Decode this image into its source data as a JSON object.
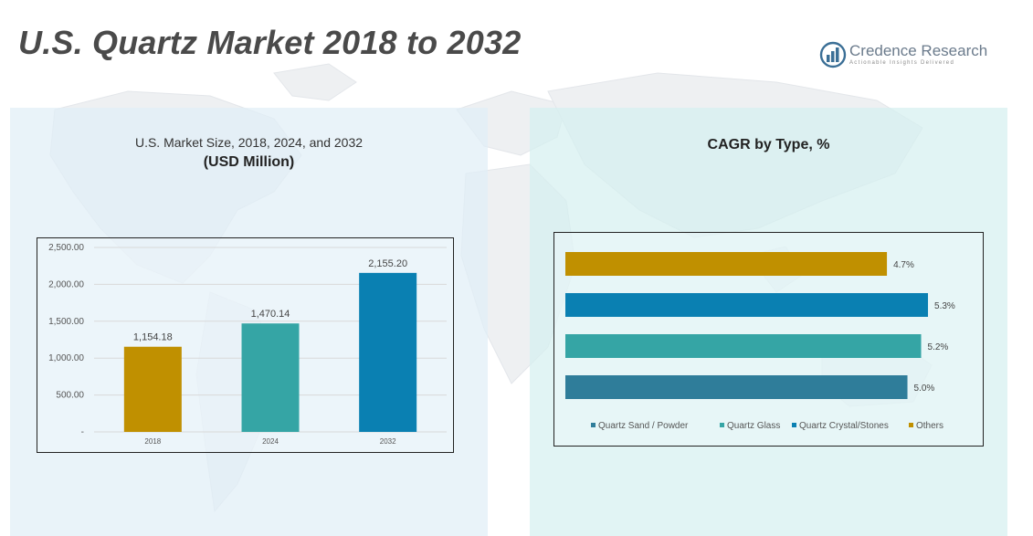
{
  "title": "U.S. Quartz Market 2018 to 2032",
  "logo": {
    "name": "Credence Research",
    "tagline": "Actionable Insights Delivered"
  },
  "left_panel": {
    "subtitle": "U.S. Market Size, 2018, 2024, and 2032",
    "unit": "(USD Million)"
  },
  "right_panel": {
    "title": "CAGR by Type, %"
  },
  "chart_data": [
    {
      "type": "bar",
      "categories": [
        "2018",
        "2024",
        "2032"
      ],
      "values": [
        1154.18,
        1470.14,
        2155.2
      ],
      "value_labels": [
        "1,154.18",
        "1,470.14",
        "2,155.20"
      ],
      "colors": [
        "#c09000",
        "#35a5a5",
        "#0a80b2"
      ],
      "title": "U.S. Market Size, 2018, 2024, and 2032",
      "subtitle": "(USD Million)",
      "ylim": [
        0,
        2500
      ],
      "yticks": [
        0,
        500,
        1000,
        1500,
        2000,
        2500
      ],
      "ytick_labels": [
        "-",
        "500.00",
        "1,000.00",
        "1,500.00",
        "2,000.00",
        "2,500.00"
      ],
      "grid": true
    },
    {
      "type": "bar",
      "orientation": "horizontal",
      "title": "CAGR by Type, %",
      "series": [
        {
          "name": "Others",
          "value": 4.7,
          "label": "4.7%",
          "color": "#c09000"
        },
        {
          "name": "Quartz Crystal/Stones",
          "value": 5.3,
          "label": "5.3%",
          "color": "#0a80b2"
        },
        {
          "name": "Quartz Glass",
          "value": 5.2,
          "label": "5.2%",
          "color": "#35a5a5"
        },
        {
          "name": "Quartz Sand / Powder",
          "value": 5.0,
          "label": "5.0%",
          "color": "#2f7d9a"
        }
      ],
      "xlim": [
        0,
        5.5
      ],
      "legend": [
        "Quartz Sand / Powder",
        "Quartz Glass",
        "Quartz Crystal/Stones",
        "Others"
      ],
      "legend_colors": [
        "#2f7d9a",
        "#35a5a5",
        "#0a80b2",
        "#c09000"
      ],
      "legend_position": "bottom",
      "grid": false
    }
  ]
}
